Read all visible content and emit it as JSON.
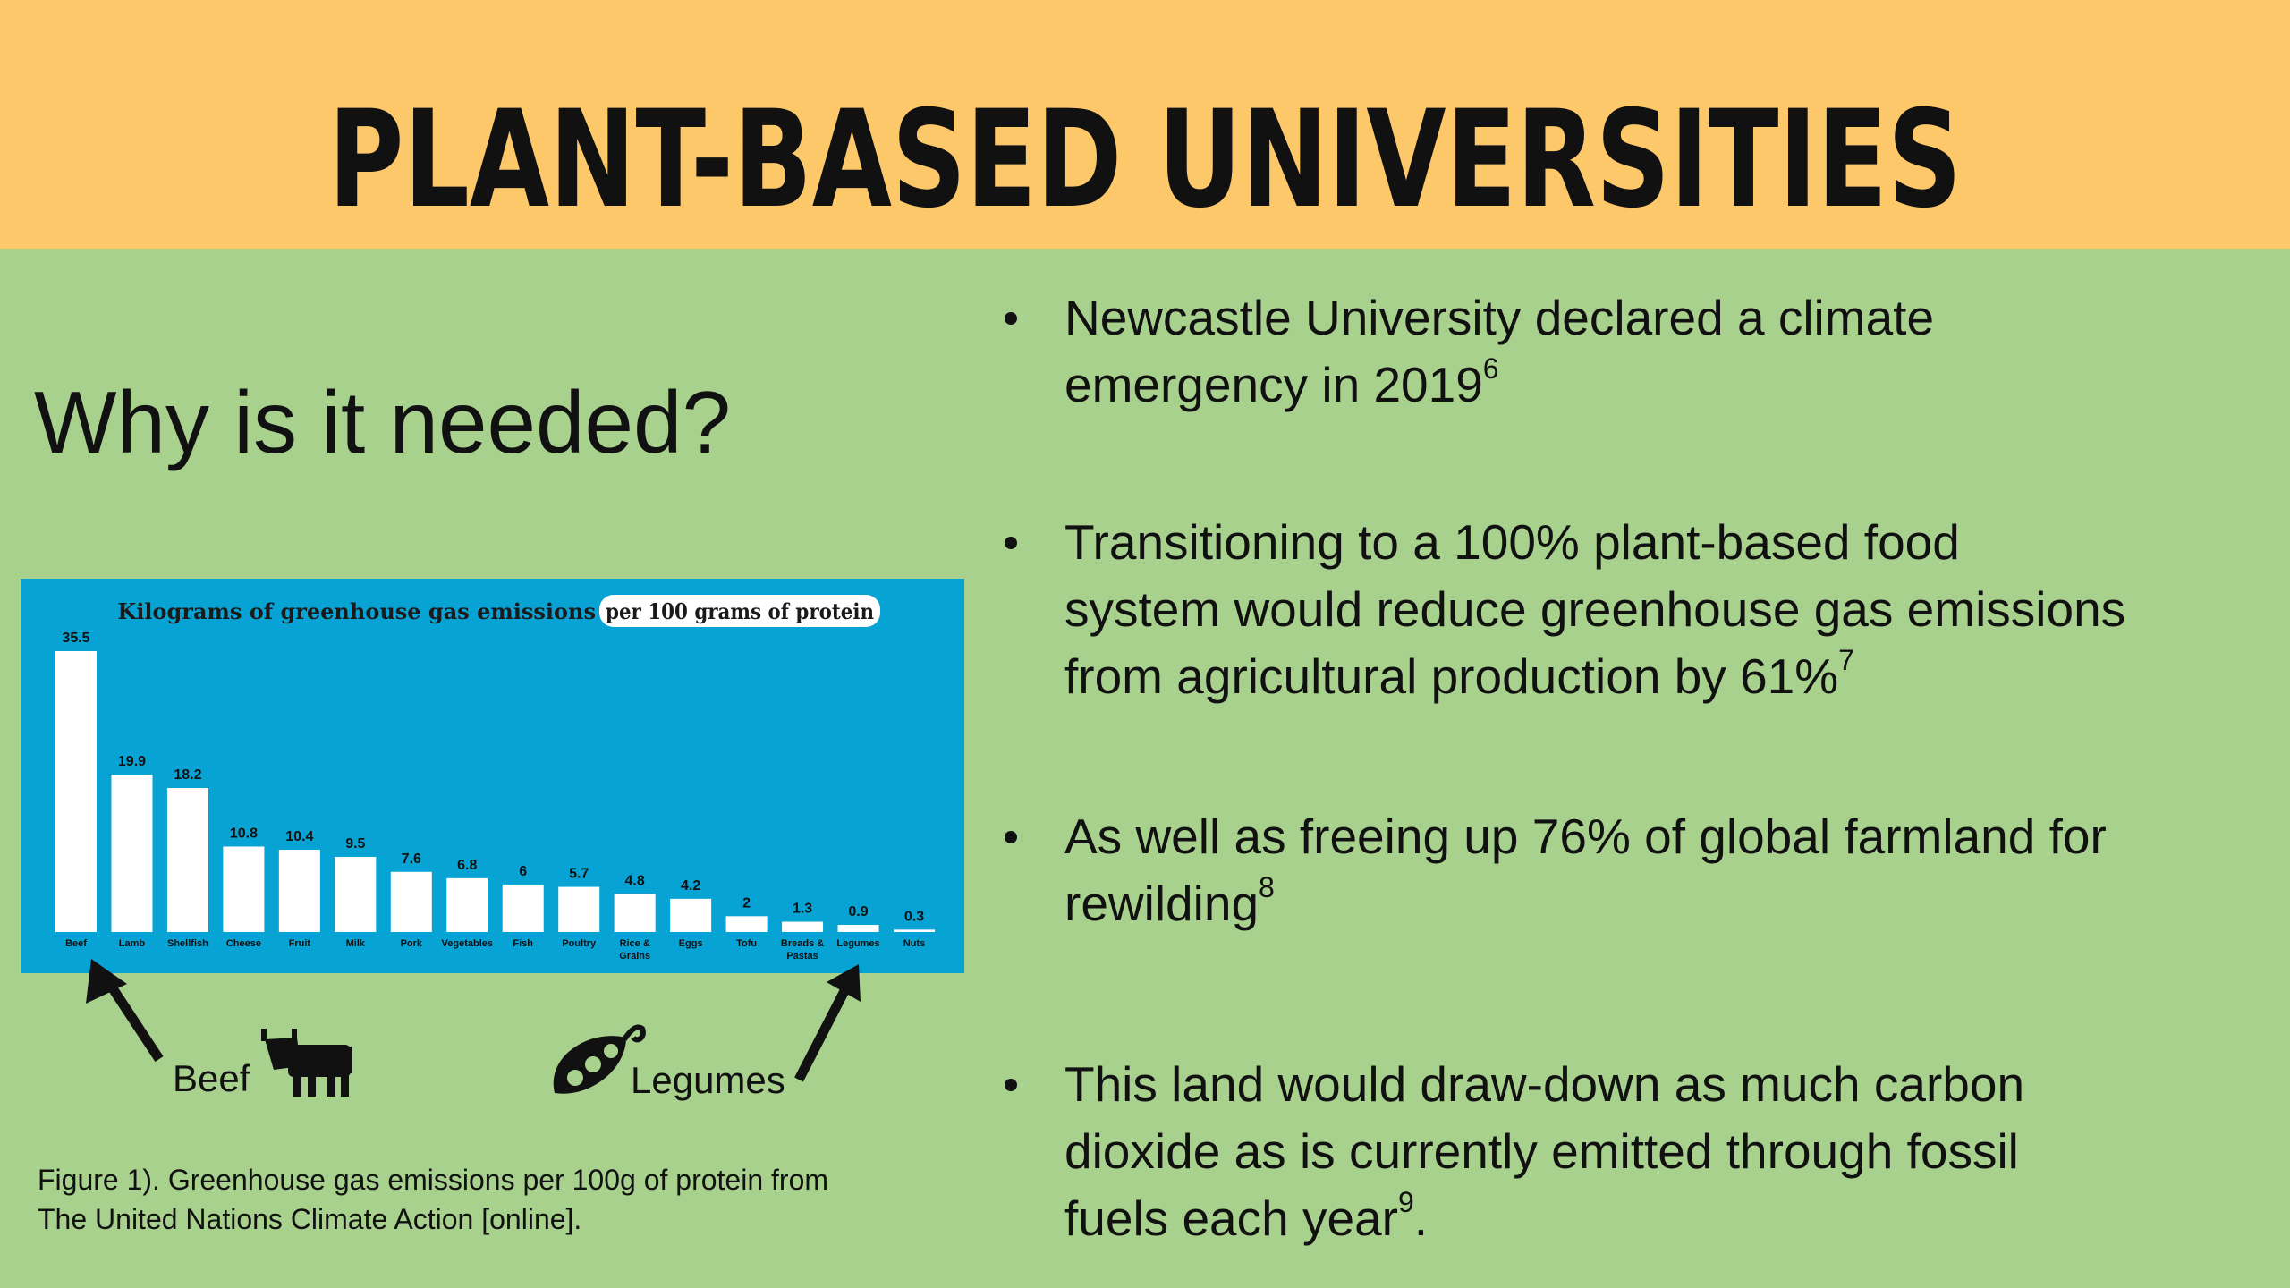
{
  "slide": {
    "title": "PLANT-BASED UNIVERSITIES",
    "heading": "Why is it needed?",
    "beef_label": "Beef",
    "legumes_label": "Legumes",
    "caption": [
      "Figure 1). Greenhouse gas emissions per 100g of protein from",
      "The United Nations Climate Action [online]."
    ],
    "bullets": [
      {
        "lines": [
          "Newcastle University declared a climate",
          "emergency in 2019"
        ],
        "ref": "6"
      },
      {
        "lines": [
          "Transitioning to a 100% plant-based food",
          "system would reduce greenhouse gas emissions",
          "from agricultural production by 61%"
        ],
        "ref": "7"
      },
      {
        "lines": [
          "As well as freeing up 76% of global farmland for",
          "rewilding"
        ],
        "ref": "8"
      },
      {
        "lines": [
          "This land would draw-down as much carbon",
          "dioxide as is currently emitted through fossil",
          "fuels each year"
        ],
        "ref": "9",
        "tail": "."
      }
    ]
  },
  "chart_data": {
    "type": "bar",
    "title": "Kilograms of greenhouse gas emissions",
    "title_highlight": "per 100 grams of protein",
    "categories": [
      "Beef",
      "Lamb",
      "Shellfish",
      "Cheese",
      "Fruit",
      "Milk",
      "Pork",
      "Vegetables",
      "Fish",
      "Poultry",
      "Rice & Grains",
      "Eggs",
      "Tofu",
      "Breads & Pastas",
      "Legumes",
      "Nuts"
    ],
    "values": [
      35.5,
      19.9,
      18.2,
      10.8,
      10.4,
      9.5,
      7.6,
      6.8,
      6,
      5.7,
      4.8,
      4.2,
      2,
      1.3,
      0.9,
      0.3
    ],
    "color": "#ffffff",
    "background": "#08a3d5"
  }
}
